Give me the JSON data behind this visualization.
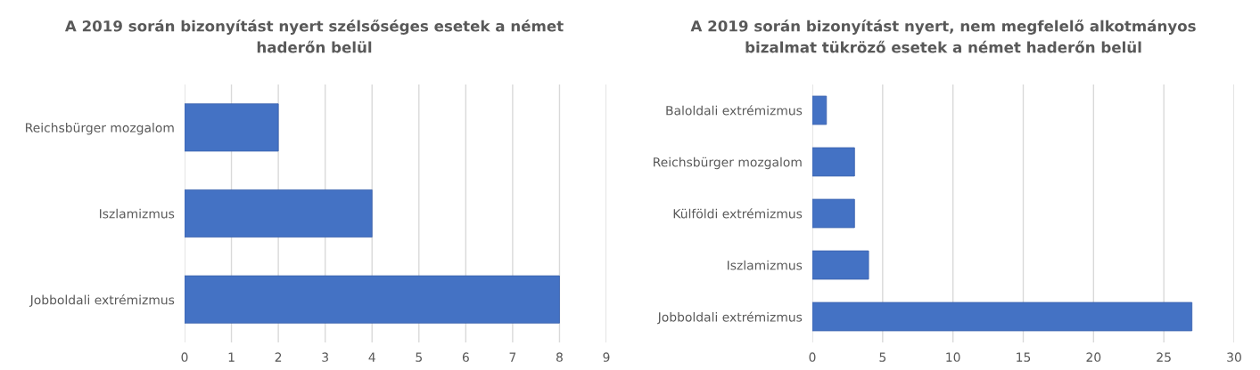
{
  "chart_data": [
    {
      "type": "bar",
      "orientation": "horizontal",
      "title": "A 2019 során bizonyítást nyert szélsőséges esetek a német haderőn belül",
      "categories": [
        "Reichsbürger mozgalom",
        "Iszlamizmus",
        "Jobboldali extrémizmus"
      ],
      "values": [
        2,
        4,
        8
      ],
      "color": "#4472c4",
      "xlim": [
        0,
        9
      ],
      "xticks": [
        0,
        1,
        2,
        3,
        4,
        5,
        6,
        7,
        8,
        9
      ],
      "grid": "x",
      "legend": false
    },
    {
      "type": "bar",
      "orientation": "horizontal",
      "title": "A 2019 során bizonyítást nyert, nem megfelelő alkotmányos bizalmat tükröző esetek a német haderőn belül",
      "categories": [
        "Baloldali extrémizmus",
        "Reichsbürger mozgalom",
        "Külföldi extrémizmus",
        "Iszlamizmus",
        "Jobboldali extrémizmus"
      ],
      "values": [
        1,
        3,
        3,
        4,
        27
      ],
      "color": "#4472c4",
      "xlim": [
        0,
        30
      ],
      "xticks": [
        0,
        5,
        10,
        15,
        20,
        25,
        30
      ],
      "grid": "x",
      "legend": false
    }
  ]
}
